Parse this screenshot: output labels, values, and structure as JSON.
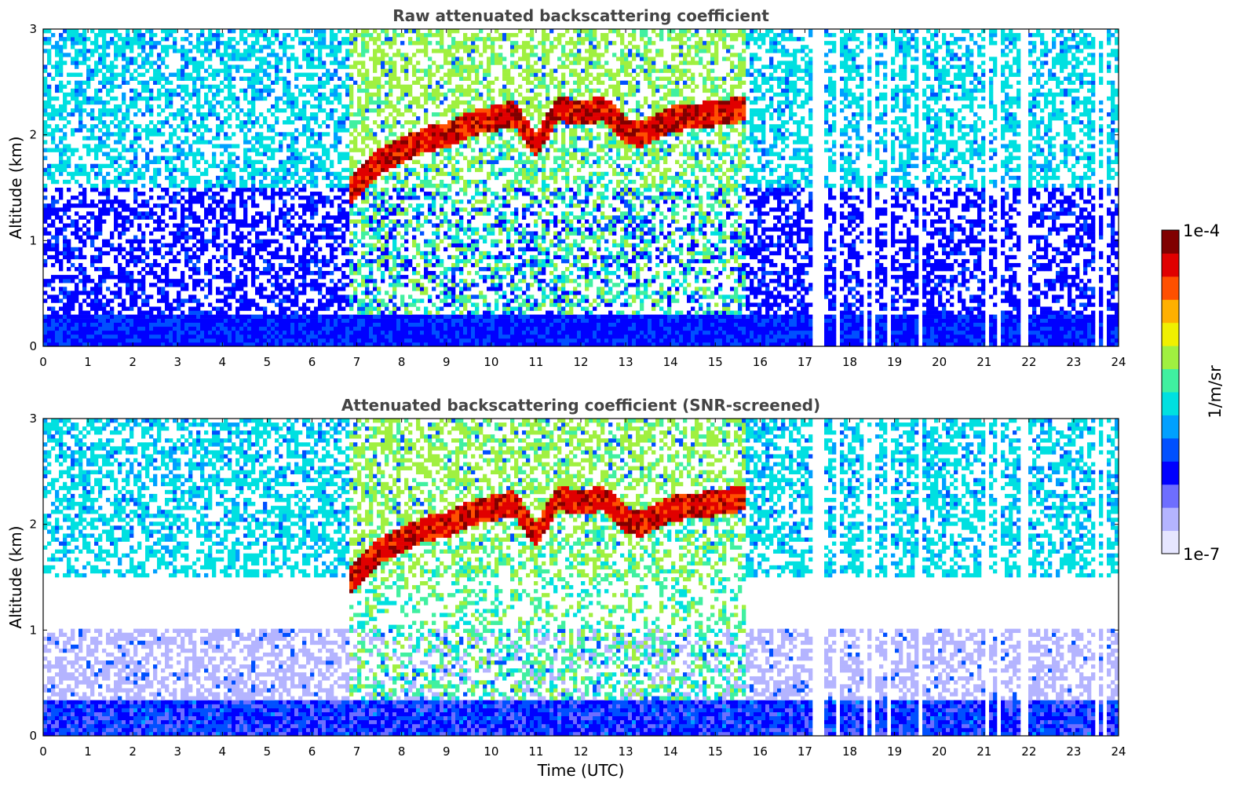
{
  "chart_data": [
    {
      "type": "heatmap",
      "title": "Raw attenuated backscattering coefficient",
      "xlabel": "",
      "ylabel": "Altitude (km)",
      "xlim": [
        0,
        24
      ],
      "ylim": [
        0,
        3
      ],
      "xticks": [
        "0",
        "1",
        "2",
        "3",
        "4",
        "5",
        "6",
        "7",
        "8",
        "9",
        "10",
        "11",
        "12",
        "13",
        "14",
        "15",
        "16",
        "17",
        "18",
        "19",
        "20",
        "21",
        "22",
        "23",
        "24"
      ],
      "yticks": [
        "0",
        "1",
        "2",
        "3"
      ],
      "screened": false,
      "boundary_layer_top_km": [
        {
          "t": 6.8,
          "h": 1.45
        },
        {
          "t": 7.5,
          "h": 1.75
        },
        {
          "t": 8.0,
          "h": 1.85
        },
        {
          "t": 8.5,
          "h": 1.95
        },
        {
          "t": 9.0,
          "h": 2.0
        },
        {
          "t": 9.5,
          "h": 2.1
        },
        {
          "t": 10.0,
          "h": 2.15
        },
        {
          "t": 10.5,
          "h": 2.2
        },
        {
          "t": 11.0,
          "h": 1.9
        },
        {
          "t": 11.5,
          "h": 2.25
        },
        {
          "t": 12.0,
          "h": 2.2
        },
        {
          "t": 12.5,
          "h": 2.25
        },
        {
          "t": 13.0,
          "h": 2.05
        },
        {
          "t": 13.3,
          "h": 2.0
        },
        {
          "t": 14.0,
          "h": 2.15
        },
        {
          "t": 15.0,
          "h": 2.2
        },
        {
          "t": 15.7,
          "h": 2.25
        }
      ],
      "data_gaps_utc": [
        17.25,
        17.35,
        17.75,
        18.35,
        18.5,
        18.88,
        19.55,
        21.1,
        21.3,
        21.9,
        23.5,
        23.7
      ]
    },
    {
      "type": "heatmap",
      "title": "Attenuated backscattering coefficient (SNR-screened)",
      "xlabel": "Time (UTC)",
      "ylabel": "Altitude (km)",
      "xlim": [
        0,
        24
      ],
      "ylim": [
        0,
        3
      ],
      "xticks": [
        "0",
        "1",
        "2",
        "3",
        "4",
        "5",
        "6",
        "7",
        "8",
        "9",
        "10",
        "11",
        "12",
        "13",
        "14",
        "15",
        "16",
        "17",
        "18",
        "19",
        "20",
        "21",
        "22",
        "23",
        "24"
      ],
      "yticks": [
        "0",
        "1",
        "2",
        "3"
      ],
      "screened": true,
      "boundary_layer_top_km": [
        {
          "t": 6.8,
          "h": 1.45
        },
        {
          "t": 7.5,
          "h": 1.75
        },
        {
          "t": 8.0,
          "h": 1.85
        },
        {
          "t": 8.5,
          "h": 1.95
        },
        {
          "t": 9.0,
          "h": 2.0
        },
        {
          "t": 9.5,
          "h": 2.1
        },
        {
          "t": 10.0,
          "h": 2.15
        },
        {
          "t": 10.5,
          "h": 2.2
        },
        {
          "t": 11.0,
          "h": 1.9
        },
        {
          "t": 11.5,
          "h": 2.25
        },
        {
          "t": 12.0,
          "h": 2.2
        },
        {
          "t": 12.5,
          "h": 2.25
        },
        {
          "t": 13.0,
          "h": 2.05
        },
        {
          "t": 13.3,
          "h": 2.0
        },
        {
          "t": 14.0,
          "h": 2.15
        },
        {
          "t": 15.0,
          "h": 2.2
        },
        {
          "t": 15.7,
          "h": 2.25
        }
      ],
      "data_gaps_utc": [
        17.25,
        17.35,
        17.75,
        18.35,
        18.5,
        18.88,
        19.55,
        21.1,
        21.3,
        21.9,
        23.5,
        23.7
      ]
    }
  ],
  "colorbar": {
    "label": "1/m/sr",
    "max_label": "1e-4",
    "min_label": "1e-7",
    "scale": "log",
    "range": [
      1e-07,
      0.0001
    ],
    "colors": [
      "#e6e6ff",
      "#b4b4ff",
      "#6e6eff",
      "#0000ff",
      "#0050ff",
      "#00a0ff",
      "#00e0e0",
      "#40f0a0",
      "#a0f040",
      "#f0f000",
      "#ffb000",
      "#ff5000",
      "#e00000",
      "#800000"
    ]
  }
}
